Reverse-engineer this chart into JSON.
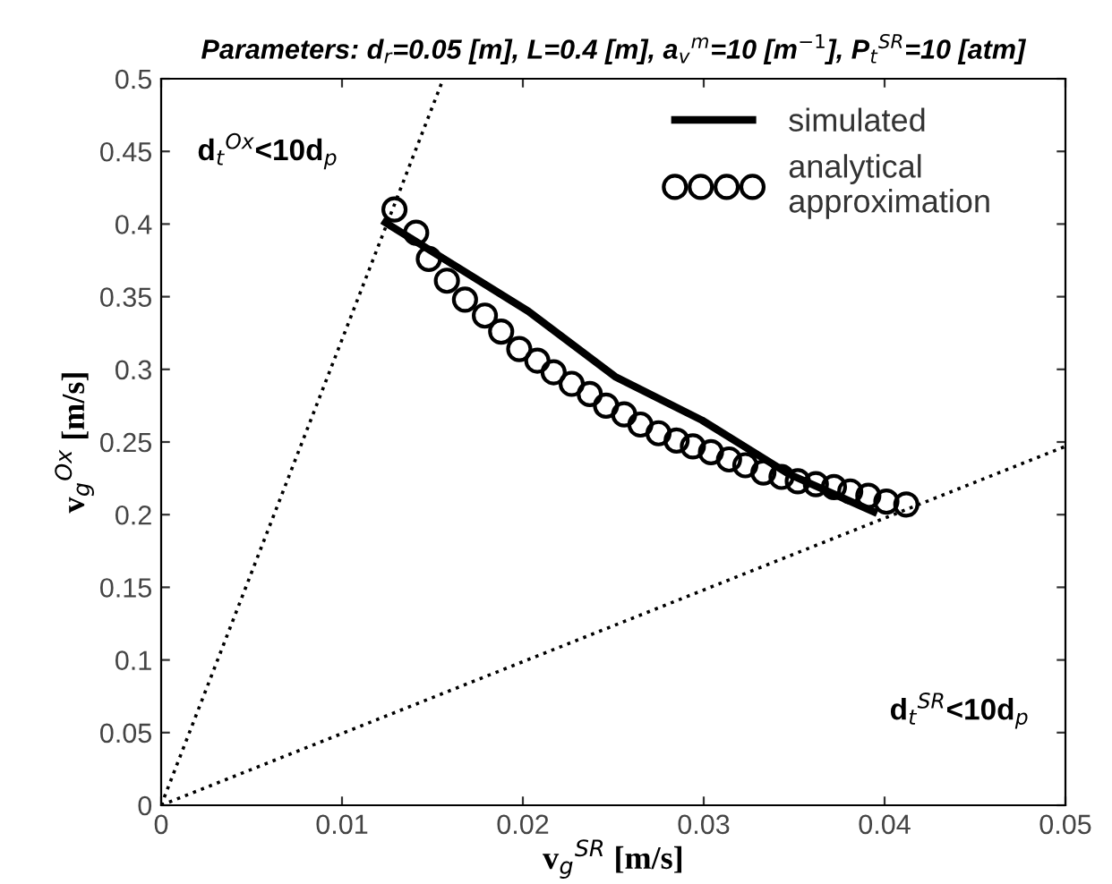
{
  "chart_data": {
    "type": "line",
    "title": "Parameters: d$_{r}$=0.05 [m], L=0.4 [m], a$_{v}$$^{m}$=10 [m$^{−1}$], P$_{t}$$^{SR}$=10 [atm]",
    "xlabel": "v$_{g}$$^{SR}$ [m/s]",
    "ylabel": "v$_{g}$$^{Ox}$ [m/s]",
    "annotations": [
      "d$_{t}$$^{Ox}$<10d$_{p}$",
      "d$_{t}$$^{SR}$<10d$_{p}$"
    ],
    "xlim": [
      0,
      0.05
    ],
    "ylim": [
      0,
      0.5
    ],
    "xticks": [
      0,
      0.01,
      0.02,
      0.03,
      0.04,
      0.05
    ],
    "yticks": [
      0,
      0.05,
      0.1,
      0.15,
      0.2,
      0.25,
      0.3,
      0.35,
      0.4,
      0.45,
      0.5
    ],
    "grid": false,
    "legend": "top right",
    "series": [
      {
        "color": "#000000",
        "line_style": "dotted",
        "x": [
          0,
          0.0156
        ],
        "values": [
          0,
          0.5
        ]
      },
      {
        "color": "#000000",
        "line_style": "dotted",
        "x": [
          0,
          0.05
        ],
        "values": [
          0,
          0.247
        ]
      },
      {
        "name": "simulated",
        "color": "#000000",
        "line_style": "solid",
        "x": [
          0.0124,
          0.0203,
          0.0251,
          0.0299,
          0.0347,
          0.0394
        ],
        "values": [
          0.401,
          0.34,
          0.295,
          0.265,
          0.228,
          0.202
        ]
      },
      {
        "name": "analytical\napproximation",
        "type": "scatter",
        "marker": "circle",
        "color": "#000000",
        "x": [
          0.0129,
          0.0141,
          0.0148,
          0.0158,
          0.0168,
          0.0179,
          0.0188,
          0.0198,
          0.0208,
          0.0217,
          0.0227,
          0.0237,
          0.0246,
          0.0256,
          0.0265,
          0.0275,
          0.0285,
          0.0294,
          0.0304,
          0.0314,
          0.0323,
          0.0333,
          0.0343,
          0.0352,
          0.0362,
          0.0372,
          0.0381,
          0.0391,
          0.0401,
          0.0412
        ],
        "values": [
          0.41,
          0.394,
          0.376,
          0.361,
          0.348,
          0.337,
          0.326,
          0.314,
          0.306,
          0.298,
          0.29,
          0.283,
          0.275,
          0.269,
          0.262,
          0.256,
          0.251,
          0.247,
          0.243,
          0.238,
          0.234,
          0.229,
          0.226,
          0.223,
          0.221,
          0.219,
          0.216,
          0.213,
          0.209,
          0.207
        ]
      }
    ]
  }
}
